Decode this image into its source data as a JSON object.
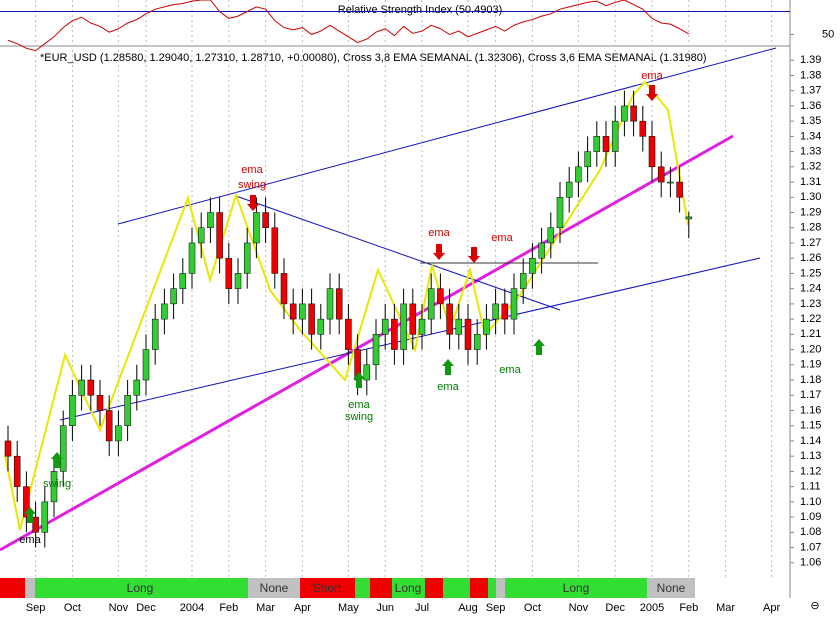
{
  "chart_data": {
    "type": "candlestick",
    "title": "*EUR_USD (1.28580, 1.29040, 1.27310, 1.28710, +0.00080), Cross 3,8 EMA SEMANAL (1.32306), Cross 3,6 EMA SEMANAL (1.31980)",
    "categories": [
      null,
      null,
      null,
      "Sep",
      null,
      null,
      null,
      "Oct",
      null,
      null,
      null,
      null,
      "Nov",
      null,
      null,
      "Dec",
      null,
      null,
      null,
      null,
      "2004",
      null,
      null,
      null,
      "Feb",
      null,
      null,
      null,
      "Mar",
      null,
      null,
      null,
      "Apr",
      null,
      null,
      null,
      null,
      "May",
      null,
      null,
      null,
      "Jun",
      null,
      null,
      null,
      "Jul",
      null,
      null,
      null,
      null,
      "Aug",
      null,
      null,
      "Sep",
      null,
      null,
      null,
      "Oct",
      null,
      null,
      null,
      null,
      "Nov",
      null,
      null,
      null,
      "Dec",
      null,
      null,
      null,
      "2005",
      null,
      null,
      null,
      "Feb",
      null,
      null,
      null,
      "Mar",
      null,
      null,
      null,
      null,
      "Apr",
      null,
      null
    ],
    "open": [
      1.14,
      1.13,
      1.11,
      1.09,
      1.08,
      1.1,
      1.12,
      1.15,
      1.17,
      1.18,
      1.17,
      1.16,
      1.14,
      1.15,
      1.17,
      1.18,
      1.2,
      1.22,
      1.23,
      1.24,
      1.25,
      1.27,
      1.28,
      1.29,
      1.26,
      1.24,
      1.25,
      1.27,
      1.29,
      1.28,
      1.25,
      1.23,
      1.22,
      1.23,
      1.21,
      1.22,
      1.24,
      1.22,
      1.2,
      1.18,
      1.19,
      1.21,
      1.22,
      1.2,
      1.23,
      1.21,
      1.22,
      1.24,
      1.23,
      1.21,
      1.22,
      1.2,
      1.21,
      1.22,
      1.23,
      1.22,
      1.24,
      1.25,
      1.26,
      1.27,
      1.28,
      1.3,
      1.31,
      1.32,
      1.33,
      1.34,
      1.33,
      1.35,
      1.36,
      1.35,
      1.34,
      1.32,
      1.31,
      1.31,
      1.2858,
      null,
      null,
      null,
      null,
      null,
      null,
      null,
      null,
      null,
      null,
      null
    ],
    "high": [
      1.15,
      1.14,
      1.12,
      1.1,
      1.11,
      1.13,
      1.16,
      1.18,
      1.19,
      1.19,
      1.18,
      1.17,
      1.16,
      1.18,
      1.19,
      1.21,
      1.23,
      1.24,
      1.25,
      1.26,
      1.28,
      1.29,
      1.3,
      1.3,
      1.27,
      1.26,
      1.28,
      1.3,
      1.3,
      1.29,
      1.26,
      1.24,
      1.24,
      1.24,
      1.23,
      1.25,
      1.25,
      1.23,
      1.21,
      1.2,
      1.22,
      1.23,
      1.23,
      1.24,
      1.24,
      1.23,
      1.25,
      1.25,
      1.24,
      1.23,
      1.23,
      1.22,
      1.23,
      1.24,
      1.24,
      1.25,
      1.26,
      1.27,
      1.28,
      1.29,
      1.31,
      1.32,
      1.33,
      1.34,
      1.35,
      1.35,
      1.36,
      1.37,
      1.37,
      1.36,
      1.35,
      1.33,
      1.32,
      1.32,
      1.2904,
      null,
      null,
      null,
      null,
      null,
      null,
      null,
      null,
      null,
      null,
      null
    ],
    "low": [
      1.12,
      1.1,
      1.08,
      1.07,
      1.07,
      1.09,
      1.11,
      1.14,
      1.16,
      1.16,
      1.15,
      1.13,
      1.13,
      1.14,
      1.16,
      1.17,
      1.19,
      1.21,
      1.22,
      1.23,
      1.24,
      1.26,
      1.27,
      1.25,
      1.23,
      1.23,
      1.24,
      1.26,
      1.27,
      1.24,
      1.22,
      1.21,
      1.21,
      1.2,
      1.2,
      1.21,
      1.21,
      1.19,
      1.17,
      1.17,
      1.18,
      1.2,
      1.19,
      1.19,
      1.2,
      1.2,
      1.21,
      1.22,
      1.2,
      1.2,
      1.19,
      1.19,
      1.2,
      1.21,
      1.21,
      1.21,
      1.23,
      1.24,
      1.25,
      1.26,
      1.27,
      1.29,
      1.3,
      1.31,
      1.32,
      1.32,
      1.32,
      1.34,
      1.34,
      1.33,
      1.31,
      1.3,
      1.3,
      1.29,
      1.2731,
      null,
      null,
      null,
      null,
      null,
      null,
      null,
      null,
      null,
      null,
      null
    ],
    "close": [
      1.13,
      1.11,
      1.09,
      1.08,
      1.1,
      1.12,
      1.15,
      1.17,
      1.18,
      1.17,
      1.16,
      1.14,
      1.15,
      1.17,
      1.18,
      1.2,
      1.22,
      1.23,
      1.24,
      1.25,
      1.27,
      1.28,
      1.29,
      1.26,
      1.24,
      1.25,
      1.27,
      1.29,
      1.28,
      1.25,
      1.23,
      1.22,
      1.23,
      1.21,
      1.22,
      1.24,
      1.22,
      1.2,
      1.18,
      1.19,
      1.21,
      1.22,
      1.2,
      1.23,
      1.21,
      1.22,
      1.24,
      1.23,
      1.21,
      1.22,
      1.2,
      1.21,
      1.22,
      1.23,
      1.22,
      1.24,
      1.25,
      1.26,
      1.27,
      1.28,
      1.3,
      1.31,
      1.32,
      1.33,
      1.34,
      1.33,
      1.35,
      1.36,
      1.35,
      1.34,
      1.32,
      1.31,
      1.31,
      1.3,
      1.2871,
      null,
      null,
      null,
      null,
      null,
      null,
      null,
      null,
      null,
      null,
      null
    ],
    "up_color": "#33cc33",
    "down_color": "#ee0000",
    "ylim": [
      1.05,
      1.4
    ],
    "yticks": [
      {
        "value": 1.06,
        "label": "1.06"
      },
      {
        "value": 1.07,
        "label": "1.07"
      },
      {
        "value": 1.08,
        "label": "1.08"
      },
      {
        "value": 1.09,
        "label": "1.09"
      },
      {
        "value": 1.1,
        "label": "1.10"
      },
      {
        "value": 1.11,
        "label": "1.11"
      },
      {
        "value": 1.12,
        "label": "1.12"
      },
      {
        "value": 1.13,
        "label": "1.13"
      },
      {
        "value": 1.14,
        "label": "1.14"
      },
      {
        "value": 1.15,
        "label": "1.15"
      },
      {
        "value": 1.16,
        "label": "1.16"
      },
      {
        "value": 1.17,
        "label": "1.17"
      },
      {
        "value": 1.18,
        "label": "1.18"
      },
      {
        "value": 1.19,
        "label": "1.19"
      },
      {
        "value": 1.2,
        "label": "1.20"
      },
      {
        "value": 1.21,
        "label": "1.21"
      },
      {
        "value": 1.22,
        "label": "1.22"
      },
      {
        "value": 1.23,
        "label": "1.23"
      },
      {
        "value": 1.24,
        "label": "1.24"
      },
      {
        "value": 1.25,
        "label": "1.25"
      },
      {
        "value": 1.26,
        "label": "1.26"
      },
      {
        "value": 1.27,
        "label": "1.27"
      },
      {
        "value": 1.28,
        "label": "1.28"
      },
      {
        "value": 1.29,
        "label": "1.29"
      },
      {
        "value": 1.3,
        "label": "1.30"
      },
      {
        "value": 1.31,
        "label": "1.31"
      },
      {
        "value": 1.32,
        "label": "1.32"
      },
      {
        "value": 1.33,
        "label": "1.33"
      },
      {
        "value": 1.34,
        "label": "1.34"
      },
      {
        "value": 1.35,
        "label": "1.35"
      },
      {
        "value": 1.36,
        "label": "1.36"
      },
      {
        "value": 1.37,
        "label": "1.37"
      },
      {
        "value": 1.38,
        "label": "1.38"
      },
      {
        "value": 1.39,
        "label": "1.39"
      }
    ],
    "grid": true,
    "annotations": [
      "ema",
      "swing",
      "ema",
      "swing",
      "ema",
      "swing",
      "ema",
      "ema",
      "ema",
      "ema",
      "ema"
    ],
    "signal_labels": [
      "Long",
      "None",
      "Short",
      "Long",
      "Long",
      "None"
    ],
    "corner_icon": "⊖",
    "rsi": {
      "title": "Relative Strength Index (50.4903)",
      "color": "#cc0000",
      "values": [
        45,
        42,
        38,
        36,
        42,
        48,
        56,
        62,
        65,
        60,
        57,
        52,
        55,
        60,
        63,
        68,
        72,
        74,
        76,
        77,
        79,
        80,
        80,
        70,
        64,
        66,
        70,
        74,
        72,
        62,
        56,
        54,
        56,
        50,
        53,
        58,
        53,
        48,
        43,
        46,
        52,
        55,
        49,
        57,
        51,
        53,
        58,
        55,
        50,
        53,
        48,
        51,
        54,
        57,
        53,
        58,
        61,
        63,
        66,
        68,
        72,
        74,
        76,
        78,
        79,
        75,
        78,
        80,
        76,
        72,
        64,
        60,
        59,
        55,
        50.4903,
        null,
        null,
        null,
        null,
        null,
        null,
        null,
        null,
        null,
        null,
        null
      ],
      "ylim": [
        40,
        80
      ],
      "yticks": [
        50
      ],
      "level": 70
    }
  }
}
